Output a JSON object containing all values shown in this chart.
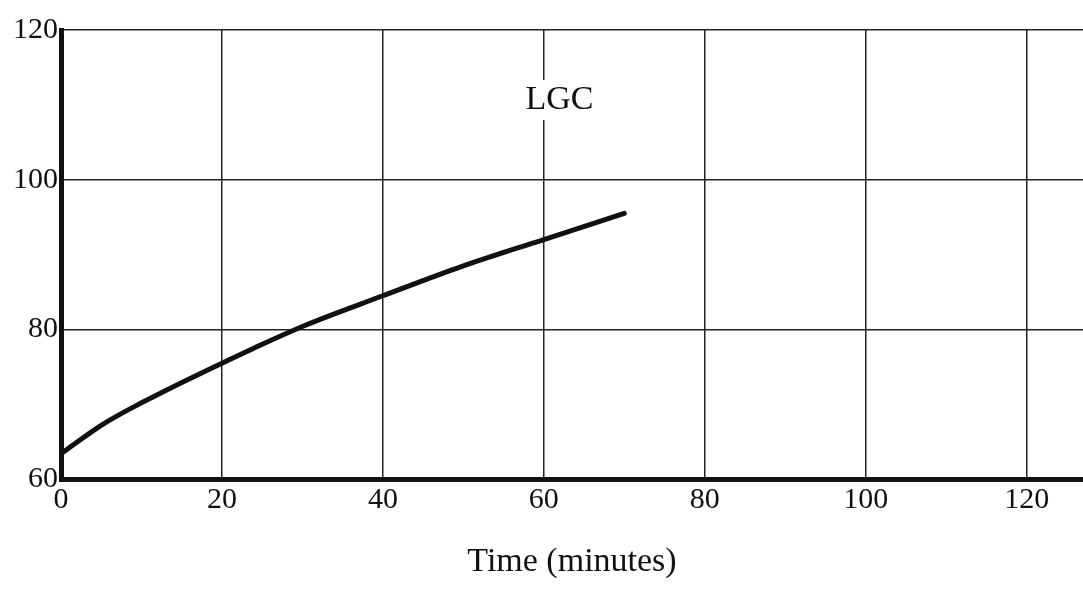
{
  "chart_data": {
    "type": "line",
    "title": "LGC",
    "xlabel": "Time (minutes)",
    "x": [
      0,
      5,
      10,
      20,
      30,
      40,
      50,
      60,
      70
    ],
    "series": [
      {
        "color": "#111111",
        "values": [
          63.4,
          67.2,
          70.2,
          75.5,
          80.4,
          84.5,
          88.5,
          92,
          95.5
        ]
      }
    ],
    "xlim": [
      0,
      127
    ],
    "xticks": [
      0,
      20,
      40,
      60,
      80,
      100,
      120
    ],
    "ylim": [
      60,
      120
    ],
    "yticks": [
      60,
      80,
      100,
      120
    ],
    "grid": true,
    "legend": false,
    "marker": "none",
    "line_style": "solid"
  }
}
